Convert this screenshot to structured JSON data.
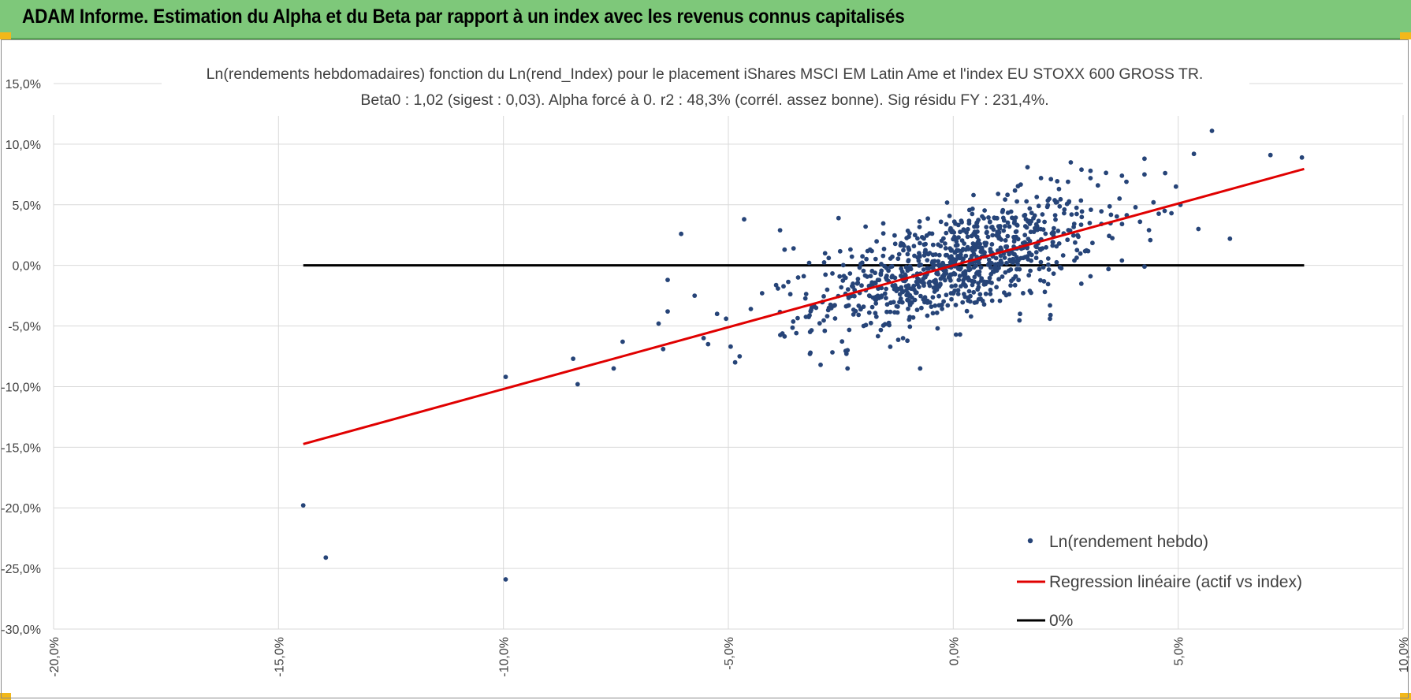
{
  "header": {
    "title": "ADAM Informe. Estimation du Alpha et du Beta par rapport à un index avec les revenus connus capitalisés"
  },
  "colors": {
    "banner": "#7ec87a",
    "points": "#264478",
    "regression": "#e00000",
    "zero_line": "#000000",
    "corner": "#f2b81a"
  },
  "chart_data": {
    "type": "scatter",
    "title_line1": "Ln(rendements hebdomadaires) fonction du Ln(rend_Index) pour le placement iShares MSCI EM Latin Ame et l'index EU STOXX 600 GROSS TR.",
    "title_line2": "Beta0 : 1,02 (sigest : 0,03). Alpha forcé à 0. r2 : 48,3% (corrél. assez bonne). Sig résidu FY : 231,4%.",
    "xlim": [
      -0.2,
      0.1
    ],
    "ylim": [
      -0.3,
      0.15
    ],
    "x_ticks": [
      -0.2,
      -0.15,
      -0.1,
      -0.05,
      0.0,
      0.05,
      0.1
    ],
    "y_ticks": [
      0.15,
      0.1,
      0.05,
      0.0,
      -0.05,
      -0.1,
      -0.15,
      -0.2,
      -0.25,
      -0.3
    ],
    "x_tick_labels": [
      "-20,0%",
      "-15,0%",
      "-10,0%",
      "-5,0%",
      "0,0%",
      "5,0%",
      "10,0%"
    ],
    "y_tick_labels": [
      "15,0%",
      "10,0%",
      "5,0%",
      "0,0%",
      "-5,0%",
      "-10,0%",
      "-15,0%",
      "-20,0%",
      "-25,0%",
      "-30,0%"
    ],
    "legend": [
      "Ln(rendement hebdo)",
      "Regression linéaire (actif vs index)",
      "0%"
    ],
    "legend_position": "bottom-right",
    "regression": {
      "beta": 1.02,
      "alpha": 0,
      "x_range": [
        -0.1445,
        0.078
      ]
    },
    "zero_line": {
      "x_range": [
        -0.1445,
        0.078
      ],
      "y": 0
    },
    "outlier_points": [
      [
        -0.1445,
        -0.198
      ],
      [
        -0.1395,
        -0.241
      ],
      [
        -0.0995,
        -0.259
      ],
      [
        -0.0995,
        -0.092
      ],
      [
        -0.0845,
        -0.077
      ],
      [
        -0.0835,
        -0.098
      ],
      [
        -0.0755,
        -0.085
      ],
      [
        -0.0735,
        -0.063
      ],
      [
        -0.0655,
        -0.048
      ],
      [
        -0.0645,
        -0.069
      ],
      [
        -0.0635,
        -0.038
      ],
      [
        -0.0635,
        -0.012
      ],
      [
        -0.0605,
        0.026
      ],
      [
        -0.0575,
        -0.025
      ],
      [
        -0.0555,
        -0.06
      ],
      [
        -0.0545,
        -0.065
      ],
      [
        -0.0525,
        -0.04
      ],
      [
        -0.0505,
        -0.044
      ],
      [
        -0.0495,
        -0.067
      ],
      [
        -0.0485,
        -0.08
      ],
      [
        -0.0475,
        -0.075
      ],
      [
        -0.0465,
        0.038
      ],
      [
        -0.0425,
        -0.023
      ],
      [
        -0.0385,
        0.029
      ],
      [
        -0.0375,
        0.013
      ],
      [
        -0.0355,
        0.014
      ],
      [
        -0.0345,
        -0.01
      ],
      [
        -0.0305,
        -0.035
      ],
      [
        -0.0285,
        0.01
      ],
      [
        -0.0255,
        0.039
      ],
      [
        -0.0295,
        -0.082
      ],
      [
        -0.0235,
        -0.07
      ],
      [
        -0.0195,
        0.032
      ],
      [
        -0.0185,
        0.013
      ],
      [
        0.0215,
        -0.044
      ],
      [
        0.0215,
        -0.033
      ],
      [
        0.0345,
        -0.003
      ],
      [
        0.0375,
        0.074
      ],
      [
        0.0385,
        0.069
      ],
      [
        0.0405,
        0.048
      ],
      [
        0.0415,
        0.036
      ],
      [
        0.0425,
        0.088
      ],
      [
        0.0425,
        0.075
      ],
      [
        0.0445,
        0.052
      ],
      [
        0.0485,
        0.043
      ],
      [
        0.0495,
        0.065
      ],
      [
        0.0505,
        0.05
      ],
      [
        0.0535,
        0.092
      ],
      [
        0.0545,
        0.03
      ],
      [
        0.0575,
        0.111
      ],
      [
        0.0615,
        0.022
      ],
      [
        0.0705,
        0.091
      ],
      [
        0.0775,
        0.089
      ],
      [
        0.0285,
        0.079
      ],
      [
        0.0305,
        0.078
      ],
      [
        0.0255,
        0.069
      ],
      [
        0.0165,
        0.081
      ],
      [
        0.0195,
        0.072
      ],
      [
        0.0235,
        0.063
      ],
      [
        0.0425,
        -0.001
      ],
      [
        0.0375,
        0.004
      ],
      [
        0.0305,
        -0.009
      ],
      [
        -0.0085,
        0.025
      ],
      [
        0.0045,
        0.058
      ],
      [
        -0.0035,
        -0.052
      ],
      [
        0.0015,
        -0.057
      ]
    ],
    "generated_cluster": {
      "count": 900,
      "seed": 12345,
      "x_mean": 0.0005,
      "x_std": 0.0155,
      "x_min": -0.045,
      "x_max": 0.048,
      "noise_std": 0.021,
      "y_min": -0.085,
      "y_max": 0.085
    }
  }
}
